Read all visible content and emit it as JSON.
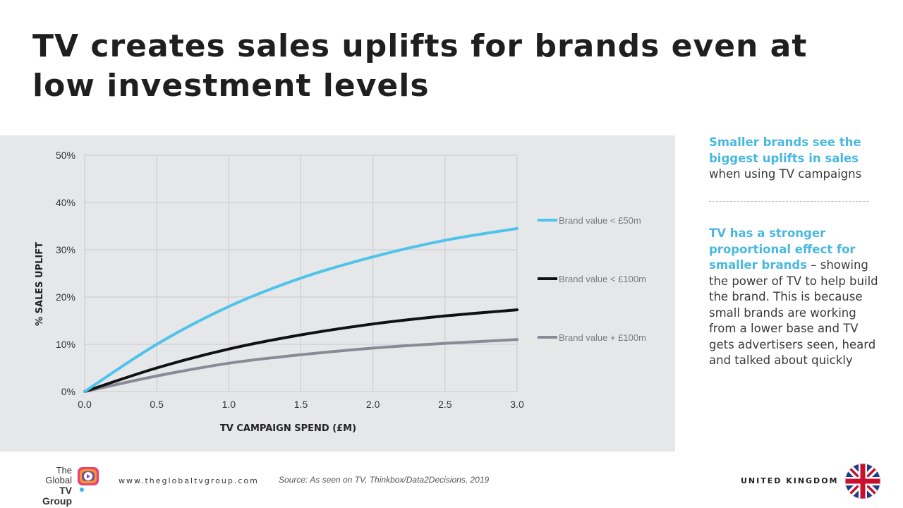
{
  "title": "TV creates sales uplifts for brands even at low investment levels",
  "sidebar": {
    "block1_highlight": "Smaller brands see the biggest uplifts in sales",
    "block1_text": "when using TV campaigns",
    "block2_highlight": "TV has a stronger proportional effect for smaller brands",
    "block2_text": " – showing the power of TV to help build the brand. This is because small brands are working from a lower base and TV gets advertisers seen, heard and talked about quickly"
  },
  "footer": {
    "logo_line1": "The",
    "logo_line2": "Global",
    "logo_line3": "TV Group",
    "url": "www.theglobaltvgroup.com",
    "source": "Source:  As seen on TV, Thinkbox/Data2Decisions, 2019",
    "country": "UNITED KINGDOM"
  },
  "colors": {
    "accent": "#4ab8e0",
    "series_small": "#4fc3ec",
    "series_mid": "#111111",
    "series_large": "#8a8a97",
    "panel": "#e6e7e9"
  },
  "chart_data": {
    "type": "line",
    "title": "",
    "xlabel": "TV CAMPAIGN SPEND (£M)",
    "ylabel": "% SALES UPLIFT",
    "xlim": [
      0,
      3
    ],
    "ylim": [
      0,
      50
    ],
    "x_ticks": [
      "0.0",
      "0.5",
      "1.0",
      "1.5",
      "2.0",
      "2.5",
      "3.0"
    ],
    "y_ticks": [
      "0%",
      "10%",
      "20%",
      "30%",
      "40%",
      "50%"
    ],
    "grid": true,
    "legend_position": "right",
    "x": [
      0,
      0.5,
      1.0,
      1.5,
      2.0,
      2.5,
      3.0
    ],
    "series": [
      {
        "name": "Brand value < £50m",
        "color": "#4fc3ec",
        "values": [
          0,
          10,
          18,
          24,
          28.5,
          32,
          34.5
        ]
      },
      {
        "name": "Brand value < £100m",
        "color": "#111111",
        "values": [
          0,
          5,
          9,
          12,
          14.3,
          16,
          17.3
        ]
      },
      {
        "name": "Brand value + £100m",
        "color": "#8a8a97",
        "values": [
          0,
          3.3,
          6,
          7.8,
          9.2,
          10.2,
          11
        ]
      }
    ]
  }
}
